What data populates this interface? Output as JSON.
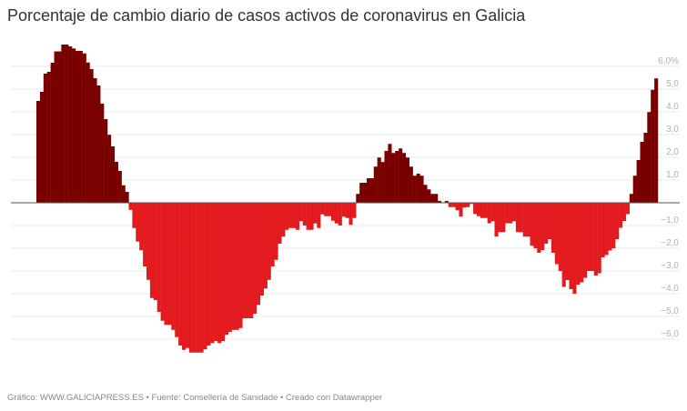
{
  "chart_data": {
    "type": "bar",
    "title": "Porcentaje de cambio diario de casos activos de coronavirus en Galicia",
    "xlabel": "",
    "ylabel": "",
    "ylim": [
      -6.6,
      7.0
    ],
    "yticks": [
      6,
      5,
      4,
      3,
      2,
      1,
      -1,
      -2,
      -3,
      -4,
      -5,
      -6
    ],
    "ytick_labels": [
      "6,0%",
      "5,0",
      "4,0",
      "3,0",
      "2,0",
      "1,0",
      "−1,0",
      "−2,0",
      "−3,0",
      "−4,0",
      "−5,0",
      "−6,0"
    ],
    "grid": true,
    "colors": {
      "positive": "#7a0000",
      "negative": "#e31b1f",
      "grid": "#e8e8e8",
      "axis": "#555555"
    },
    "values": [
      4.48,
      4.88,
      5.68,
      5.76,
      6.16,
      6.66,
      6.66,
      6.96,
      6.96,
      6.88,
      6.79,
      6.68,
      6.68,
      6.57,
      6.17,
      5.88,
      5.48,
      5.16,
      4.36,
      3.68,
      2.99,
      2.48,
      1.8,
      1.4,
      0.77,
      0.48,
      -0.31,
      -1.11,
      -1.71,
      -2.09,
      -2.8,
      -3.39,
      -4.19,
      -4.28,
      -4.8,
      -5.19,
      -5.37,
      -5.37,
      -5.59,
      -5.91,
      -6.28,
      -6.47,
      -6.39,
      -6.59,
      -6.59,
      -6.59,
      -6.59,
      -6.45,
      -6.28,
      -6.17,
      -6.08,
      -6.17,
      -6.08,
      -5.81,
      -5.68,
      -5.59,
      -5.59,
      -5.51,
      -5.08,
      -5.08,
      -5.08,
      -4.88,
      -4.49,
      -4.08,
      -3.77,
      -3.39,
      -2.8,
      -2.51,
      -1.8,
      -1.49,
      -1.19,
      -1.11,
      -1.11,
      -1.19,
      -0.81,
      -1.0,
      -1.19,
      -1.19,
      -0.91,
      -1.11,
      -0.51,
      -0.59,
      -0.59,
      -0.79,
      -0.91,
      -1.0,
      -0.61,
      -0.67,
      -0.97,
      -0.67,
      0.39,
      0.88,
      0.88,
      1.08,
      1.08,
      1.59,
      1.99,
      1.79,
      2.28,
      2.59,
      2.19,
      2.28,
      2.39,
      2.19,
      1.99,
      1.59,
      1.19,
      1.28,
      1.19,
      0.79,
      0.59,
      0.39,
      0.39,
      0.08,
      0.02,
      0.08,
      -0.19,
      -0.19,
      -0.33,
      -0.61,
      -0.21,
      -0.19,
      -0.05,
      -0.49,
      -0.59,
      -0.67,
      -0.67,
      -0.9,
      -0.81,
      -1.49,
      -1.29,
      -1.29,
      -0.9,
      -0.9,
      -0.81,
      -1.29,
      -1.29,
      -1.49,
      -1.49,
      -1.89,
      -2.0,
      -2.2,
      -2.08,
      -1.8,
      -1.6,
      -2.2,
      -2.7,
      -3.0,
      -3.7,
      -3.4,
      -3.8,
      -4.0,
      -3.6,
      -3.5,
      -3.3,
      -3.0,
      -3.0,
      -3.2,
      -3.1,
      -2.4,
      -2.3,
      -2.1,
      -2.0,
      -1.6,
      -1.1,
      -0.8,
      -0.5,
      0.39,
      1.19,
      1.88,
      2.68,
      3.08,
      3.99,
      4.97,
      5.47
    ]
  },
  "footer": "Gráfico: WWW.GALICIAPRESS.ES • Fuente: Consellería de Sanidade • Creado con Datawrapper"
}
